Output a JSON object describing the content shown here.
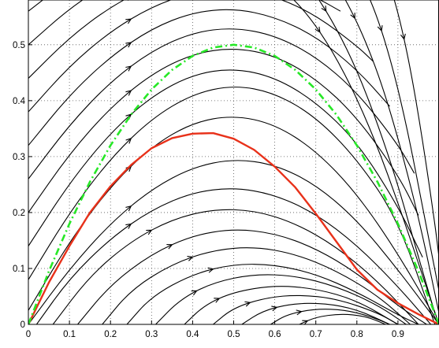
{
  "chart_data": {
    "type": "line",
    "title": "",
    "xlabel": "",
    "ylabel": "",
    "xlim": [
      0,
      1
    ],
    "ylim": [
      0,
      0.58
    ],
    "grid": true,
    "grid_style": "dotted",
    "xticks": [
      0,
      0.1,
      0.2,
      0.3,
      0.4,
      0.5,
      0.6,
      0.7,
      0.8,
      0.9
    ],
    "xtick_labels": [
      "0",
      "0.1",
      "0.2",
      "0.3",
      "0.4",
      "0.5",
      "0.6",
      "0.7",
      "0.8",
      "0.9"
    ],
    "yticks": [
      0,
      0.1,
      0.2,
      0.3,
      0.4,
      0.5
    ],
    "ytick_labels": [
      "0",
      "0.1",
      "0.2",
      "0.3",
      "0.4",
      "0.5"
    ],
    "series": [
      {
        "style": "solid",
        "color": "#e8311a",
        "x": [
          0,
          0.05,
          0.1,
          0.15,
          0.2,
          0.25,
          0.3,
          0.35,
          0.4,
          0.45,
          0.5,
          0.55,
          0.6,
          0.65,
          0.7,
          0.75,
          0.8,
          0.85,
          0.9,
          0.95,
          1.0
        ],
        "y": [
          0,
          0.075,
          0.14,
          0.2,
          0.247,
          0.285,
          0.315,
          0.333,
          0.341,
          0.342,
          0.332,
          0.312,
          0.282,
          0.245,
          0.198,
          0.148,
          0.098,
          0.062,
          0.038,
          0.018,
          0
        ]
      },
      {
        "style": "dash-dot",
        "color": "#27e827",
        "x": [
          0,
          0.05,
          0.1,
          0.15,
          0.2,
          0.25,
          0.3,
          0.35,
          0.4,
          0.45,
          0.5,
          0.55,
          0.6,
          0.65,
          0.7,
          0.75,
          0.8,
          0.85,
          0.9,
          0.95,
          1.0
        ],
        "y": [
          0,
          0.095,
          0.18,
          0.255,
          0.32,
          0.375,
          0.42,
          0.455,
          0.48,
          0.495,
          0.5,
          0.495,
          0.48,
          0.455,
          0.42,
          0.375,
          0.32,
          0.255,
          0.18,
          0.095,
          0
        ]
      }
    ],
    "streamlines": {
      "color": "#000000",
      "description_values": "trajectories of a planar vector field in data units (x, y)",
      "curves": [
        {
          "x": [
            0,
            0.1,
            0.2,
            0.3,
            0.4,
            0.5,
            0.6,
            0.7,
            0.8,
            0.9,
            1.0
          ],
          "y": [
            0,
            0.099,
            0.181,
            0.242,
            0.281,
            0.296,
            0.286,
            0.25,
            0.187,
            0.098,
            0
          ]
        },
        {
          "x": [
            0.02,
            0.1,
            0.2,
            0.3,
            0.4,
            0.5,
            0.6,
            0.7,
            0.8,
            0.9,
            0.98
          ],
          "y": [
            0,
            0.082,
            0.154,
            0.205,
            0.236,
            0.245,
            0.232,
            0.198,
            0.142,
            0.068,
            0
          ]
        },
        {
          "x": [
            0.06,
            0.15,
            0.25,
            0.35,
            0.45,
            0.55,
            0.65,
            0.75,
            0.85,
            0.95
          ],
          "y": [
            0,
            0.087,
            0.149,
            0.188,
            0.206,
            0.204,
            0.181,
            0.139,
            0.078,
            0
          ]
        },
        {
          "x": [
            0.12,
            0.2,
            0.3,
            0.4,
            0.5,
            0.6,
            0.7,
            0.8,
            0.9,
            0.97
          ],
          "y": [
            0,
            0.071,
            0.126,
            0.159,
            0.171,
            0.163,
            0.136,
            0.092,
            0.033,
            0
          ]
        },
        {
          "x": [
            0.18,
            0.25,
            0.35,
            0.45,
            0.55,
            0.65,
            0.75,
            0.85,
            0.93
          ],
          "y": [
            0,
            0.062,
            0.108,
            0.133,
            0.139,
            0.126,
            0.096,
            0.052,
            0
          ]
        },
        {
          "x": [
            0.24,
            0.3,
            0.4,
            0.5,
            0.6,
            0.7,
            0.8,
            0.9,
            0.95
          ],
          "y": [
            0,
            0.05,
            0.09,
            0.108,
            0.107,
            0.09,
            0.058,
            0.017,
            0
          ]
        },
        {
          "x": [
            0.31,
            0.37,
            0.45,
            0.55,
            0.65,
            0.75,
            0.85,
            0.92
          ],
          "y": [
            0,
            0.045,
            0.075,
            0.09,
            0.087,
            0.068,
            0.035,
            0
          ]
        },
        {
          "x": [
            0.38,
            0.43,
            0.5,
            0.6,
            0.7,
            0.8,
            0.9
          ],
          "y": [
            0,
            0.035,
            0.058,
            0.07,
            0.064,
            0.043,
            0
          ]
        },
        {
          "x": [
            0.45,
            0.5,
            0.58,
            0.66,
            0.75,
            0.85,
            0.9
          ],
          "y": [
            0,
            0.03,
            0.048,
            0.053,
            0.046,
            0.021,
            0
          ]
        },
        {
          "x": [
            0.52,
            0.57,
            0.64,
            0.72,
            0.8,
            0.88
          ],
          "y": [
            0,
            0.024,
            0.037,
            0.038,
            0.027,
            0
          ]
        },
        {
          "x": [
            0.59,
            0.63,
            0.7,
            0.77,
            0.83,
            0.88
          ],
          "y": [
            0,
            0.018,
            0.028,
            0.026,
            0.015,
            0
          ]
        },
        {
          "x": [
            0.66,
            0.7,
            0.76,
            0.82,
            0.87
          ],
          "y": [
            0,
            0.013,
            0.019,
            0.015,
            0
          ]
        },
        {
          "x": [
            0,
            0.1,
            0.2,
            0.3,
            0.4,
            0.5,
            0.6,
            0.7,
            0.8,
            0.9,
            1.0
          ],
          "y": [
            0.025,
            0.148,
            0.247,
            0.318,
            0.361,
            0.374,
            0.358,
            0.311,
            0.234,
            0.127,
            0
          ]
        },
        {
          "x": [
            0,
            0.1,
            0.2,
            0.3,
            0.4,
            0.5,
            0.6,
            0.7,
            0.8,
            0.9,
            0.99
          ],
          "y": [
            0.08,
            0.2,
            0.297,
            0.368,
            0.412,
            0.428,
            0.414,
            0.371,
            0.296,
            0.188,
            0
          ]
        },
        {
          "x": [
            0,
            0.1,
            0.2,
            0.3,
            0.4,
            0.5,
            0.6,
            0.7,
            0.8,
            0.9,
            0.96
          ],
          "y": [
            0.14,
            0.253,
            0.343,
            0.408,
            0.447,
            0.458,
            0.442,
            0.398,
            0.327,
            0.212,
            0.12
          ]
        },
        {
          "x": [
            0,
            0.1,
            0.2,
            0.3,
            0.4,
            0.5,
            0.6,
            0.7,
            0.8,
            0.9,
            0.95
          ],
          "y": [
            0.2,
            0.305,
            0.388,
            0.448,
            0.484,
            0.495,
            0.481,
            0.44,
            0.371,
            0.268,
            0.195
          ]
        },
        {
          "x": [
            0,
            0.1,
            0.2,
            0.3,
            0.4,
            0.5,
            0.6,
            0.7,
            0.8,
            0.9,
            0.94
          ],
          "y": [
            0.26,
            0.357,
            0.434,
            0.489,
            0.522,
            0.531,
            0.517,
            0.479,
            0.416,
            0.322,
            0.27
          ]
        },
        {
          "x": [
            0,
            0.1,
            0.2,
            0.3,
            0.4,
            0.5,
            0.6,
            0.7,
            0.8,
            0.88
          ],
          "y": [
            0.32,
            0.41,
            0.479,
            0.529,
            0.558,
            0.565,
            0.55,
            0.515,
            0.456,
            0.39
          ]
        },
        {
          "x": [
            0,
            0.1,
            0.2,
            0.3,
            0.4,
            0.5,
            0.6,
            0.7,
            0.8,
            0.84
          ],
          "y": [
            0.38,
            0.462,
            0.524,
            0.568,
            0.594,
            0.6,
            0.587,
            0.553,
            0.498,
            0.47
          ]
        },
        {
          "x": [
            0,
            0.1,
            0.2,
            0.3,
            0.4,
            0.5,
            0.6,
            0.7,
            0.76
          ],
          "y": [
            0.44,
            0.513,
            0.568,
            0.606,
            0.627,
            0.63,
            0.616,
            0.585,
            0.56
          ]
        },
        {
          "x": [
            0,
            0.1,
            0.2,
            0.3,
            0.4,
            0.5,
            0.6,
            0.66
          ],
          "y": [
            0.5,
            0.565,
            0.613,
            0.645,
            0.661,
            0.662,
            0.648,
            0.63
          ]
        },
        {
          "x": [
            0,
            0.1,
            0.2,
            0.3,
            0.4,
            0.5,
            0.55
          ],
          "y": [
            0.56,
            0.617,
            0.657,
            0.683,
            0.695,
            0.694,
            0.685
          ]
        },
        {
          "x": [
            0.58,
            0.62,
            0.68,
            0.74,
            0.8,
            0.86,
            0.92,
            0.97,
            1.0
          ],
          "y": [
            0.62,
            0.6,
            0.555,
            0.49,
            0.405,
            0.3,
            0.175,
            0.065,
            0.0
          ]
        },
        {
          "x": [
            0.66,
            0.7,
            0.75,
            0.8,
            0.85,
            0.9,
            0.95,
            0.99
          ],
          "y": [
            0.63,
            0.59,
            0.53,
            0.455,
            0.36,
            0.25,
            0.12,
            0.02
          ]
        },
        {
          "x": [
            0.73,
            0.77,
            0.82,
            0.87,
            0.92,
            0.96,
            1.0
          ],
          "y": [
            0.63,
            0.585,
            0.51,
            0.41,
            0.28,
            0.16,
            0.02
          ]
        },
        {
          "x": [
            0.8,
            0.84,
            0.88,
            0.92,
            0.96,
            1.0
          ],
          "y": [
            0.63,
            0.57,
            0.48,
            0.36,
            0.21,
            0.06
          ]
        },
        {
          "x": [
            0.87,
            0.9,
            0.93,
            0.96,
            0.99,
            1.0
          ],
          "y": [
            0.63,
            0.56,
            0.46,
            0.33,
            0.18,
            0.12
          ]
        }
      ]
    }
  }
}
